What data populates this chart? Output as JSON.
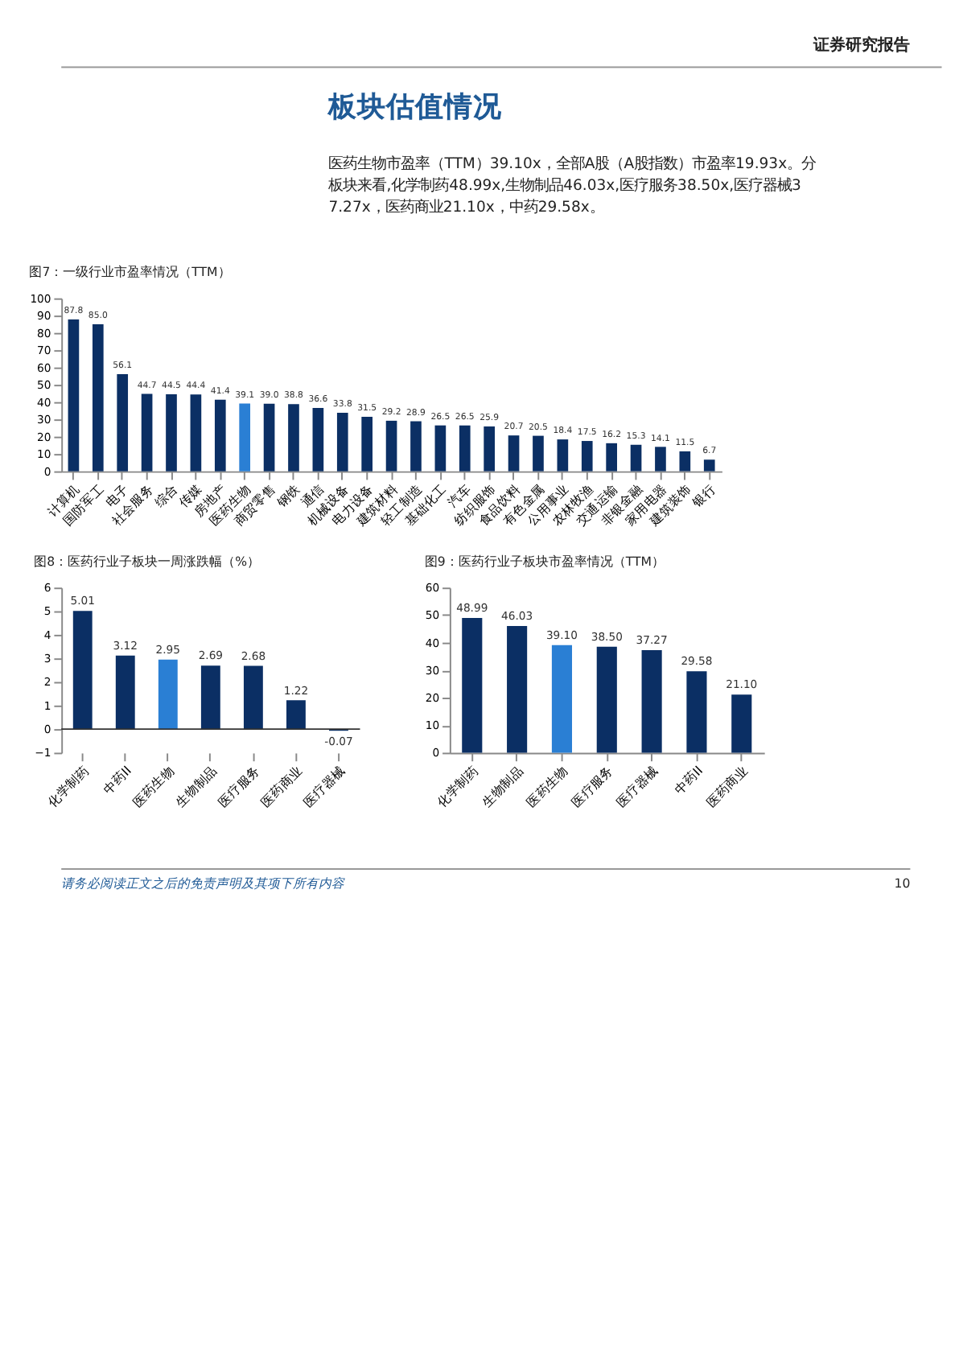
{
  "chart_data": [
    {
      "type": "bar",
      "title": "图7：一级行业市盈率情况（TTM）",
      "annotations": [
        "证券研究报告",
        "板块估值情况",
        "医药生物市盈率（TTM）39.10x，全部A股（A股指数）市盈率19.93x。分板块来看,化学制药48.99x,生物制品46.03x,医疗服务38.50x,医疗器械37.27x，医药商业21.10x，中药29.58x。",
        "请务必阅读正文之后的免责声明及其项下所有内容",
        "10"
      ],
      "categories": [
        "计算机",
        "国防军工",
        "电子",
        "社会服务",
        "综合",
        "传媒",
        "房地产",
        "医药生物",
        "商贸零售",
        "钢铁",
        "通信",
        "机械设备",
        "电力设备",
        "建筑材料",
        "轻工制造",
        "基础化工",
        "汽车",
        "纺织服饰",
        "食品饮料",
        "有色金属",
        "公用事业",
        "农林牧渔",
        "交通运输",
        "非银金融",
        "家用电器",
        "建筑装饰",
        "银行"
      ],
      "values": [
        87.8,
        85.0,
        56.1,
        44.7,
        44.5,
        44.4,
        41.4,
        39.1,
        39.0,
        38.8,
        36.6,
        33.8,
        31.5,
        29.2,
        28.9,
        26.5,
        26.5,
        25.9,
        20.7,
        20.5,
        18.4,
        17.5,
        16.2,
        15.3,
        14.1,
        11.5,
        6.7
      ],
      "colors": [
        "#0b2f64",
        "#0b2f64",
        "#0b2f64",
        "#0b2f64",
        "#0b2f64",
        "#0b2f64",
        "#0b2f64",
        "#2a7fd4",
        "#0b2f64",
        "#0b2f64",
        "#0b2f64",
        "#0b2f64",
        "#0b2f64",
        "#0b2f64",
        "#0b2f64",
        "#0b2f64",
        "#0b2f64",
        "#0b2f64",
        "#0b2f64",
        "#0b2f64",
        "#0b2f64",
        "#0b2f64",
        "#0b2f64",
        "#0b2f64",
        "#0b2f64",
        "#0b2f64",
        "#0b2f64"
      ],
      "value_labels": [
        "87.8",
        "85.0",
        "56.1",
        "44.7",
        "44.5",
        "44.4",
        "41.4",
        "39.1",
        "39.0",
        "38.8",
        "36.6",
        "33.8",
        "31.5",
        "29.2",
        "28.9",
        "26.5",
        "26.5",
        "25.9",
        "20.7",
        "20.5",
        "18.4",
        "17.5",
        "16.2",
        "15.3",
        "14.1",
        "11.5",
        "6.7"
      ],
      "ylim": [
        0,
        100
      ],
      "yticks": [
        0,
        10,
        20,
        30,
        40,
        50,
        60,
        70,
        80,
        90,
        100
      ],
      "grid": false
    },
    {
      "type": "bar",
      "title": "图8：医药行业子板块一周涨跌幅（%）",
      "categories": [
        "化学制药",
        "中药II",
        "医药生物",
        "生物制品",
        "医疗服务",
        "医药商业",
        "医疗器械"
      ],
      "values": [
        5.01,
        3.12,
        2.95,
        2.69,
        2.68,
        1.22,
        -0.07
      ],
      "colors": [
        "#0b2f64",
        "#0b2f64",
        "#2a7fd4",
        "#0b2f64",
        "#0b2f64",
        "#0b2f64",
        "#0b2f64"
      ],
      "ylim": [
        -1,
        6
      ],
      "yticks": [
        -1,
        0,
        1,
        2,
        3,
        4,
        5,
        6
      ],
      "data_labels": true,
      "grid": false,
      "ref_lines": [
        {
          "axis": "y",
          "value": 0,
          "color": "#333333"
        }
      ]
    },
    {
      "type": "bar",
      "title": "图9：医药行业子板块市盈率情况（TTM）",
      "categories": [
        "化学制药",
        "生物制品",
        "医药生物",
        "医疗服务",
        "医疗器械",
        "中药II",
        "医药商业"
      ],
      "values": [
        48.99,
        46.03,
        39.1,
        38.5,
        37.27,
        29.58,
        21.1
      ],
      "value_labels": [
        "48.99",
        "46.03",
        "39.10",
        "38.50",
        "37.27",
        "29.58",
        "21.10"
      ],
      "colors": [
        "#0b2f64",
        "#0b2f64",
        "#2a7fd4",
        "#0b2f64",
        "#0b2f64",
        "#0b2f64",
        "#0b2f64"
      ],
      "ylim": [
        0,
        60
      ],
      "yticks": [
        0,
        10,
        20,
        30,
        40,
        50,
        60
      ],
      "grid": false
    }
  ]
}
